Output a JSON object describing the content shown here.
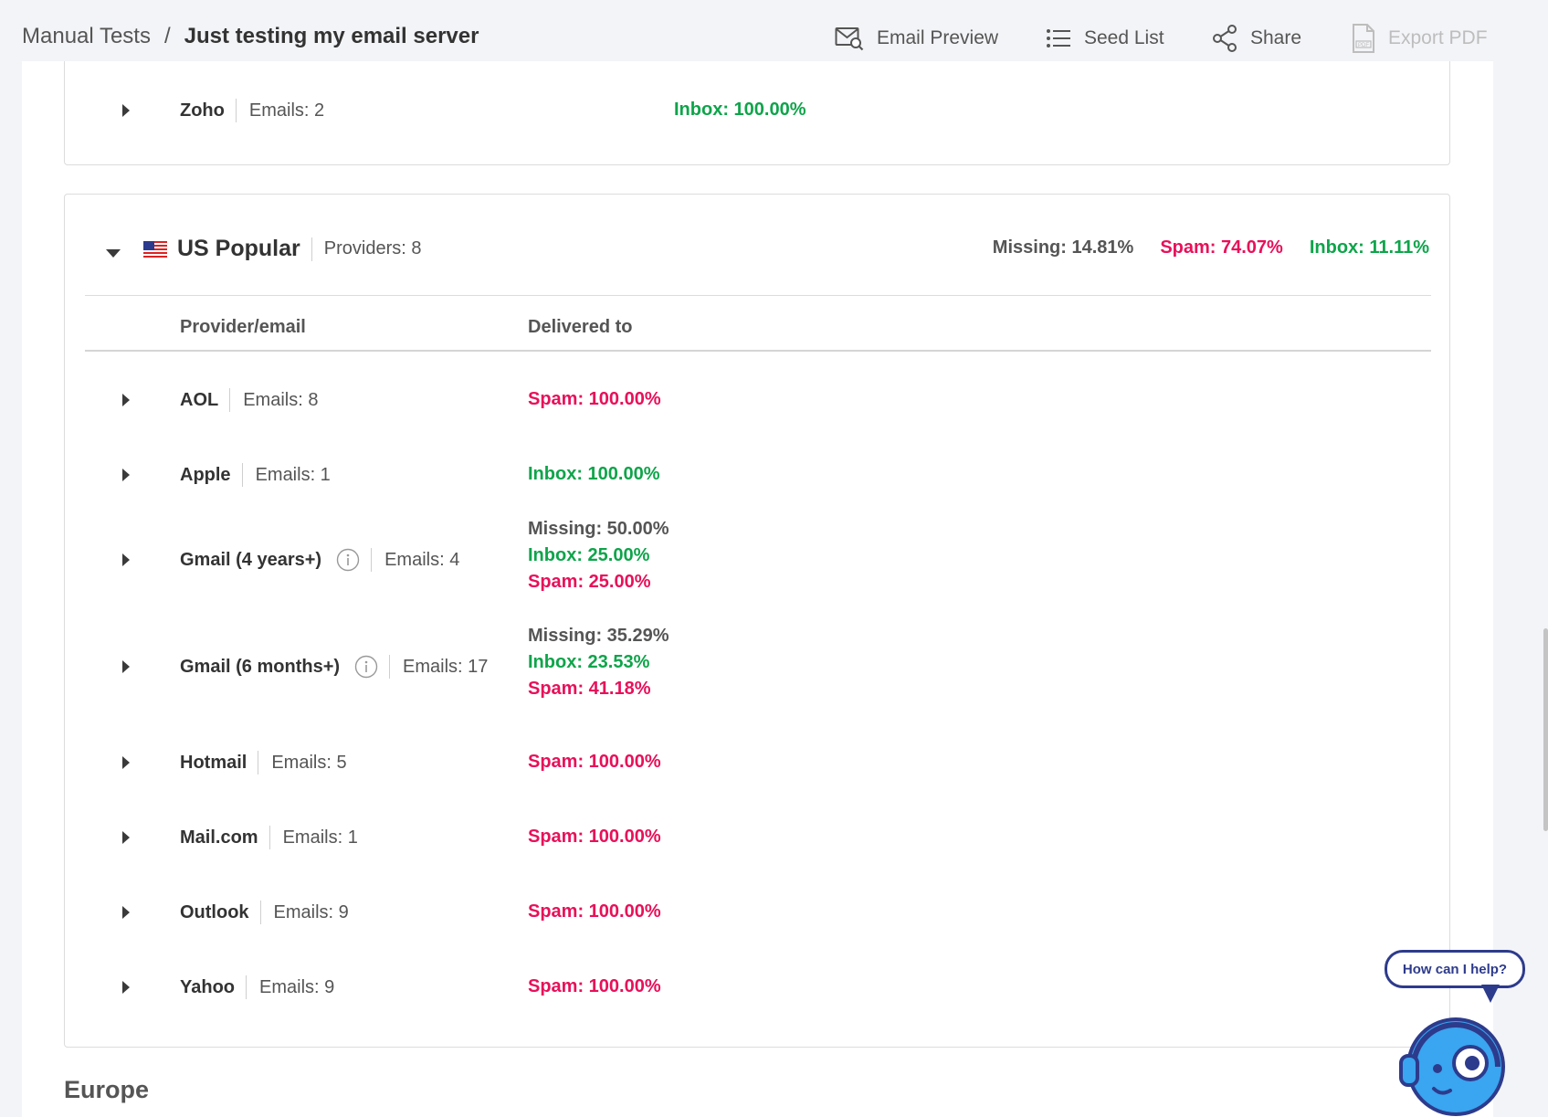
{
  "breadcrumb": {
    "parent": "Manual Tests",
    "separator": "/",
    "current": "Just testing my email server"
  },
  "toolbar": {
    "email_preview": "Email Preview",
    "seed_list": "Seed List",
    "share": "Share",
    "export_pdf": "Export PDF"
  },
  "previous_row": {
    "name": "Zoho",
    "emails": "Emails: 2",
    "delivered": "Inbox: 100.00%"
  },
  "group": {
    "title": "US Popular",
    "providers": "Providers: 8",
    "missing": "Missing: 14.81%",
    "spam": "Spam: 74.07%",
    "inbox": "Inbox: 11.11%"
  },
  "columns": {
    "provider": "Provider/email",
    "delivered": "Delivered to"
  },
  "rows": [
    {
      "name": "AOL",
      "emails": "Emails: 8",
      "spam": "Spam: 100.00%"
    },
    {
      "name": "Apple",
      "emails": "Emails: 1",
      "inbox": "Inbox: 100.00%"
    },
    {
      "name": "Gmail (4 years+)",
      "emails": "Emails: 4",
      "missing": "Missing: 50.00%",
      "inbox": "Inbox: 25.00%",
      "spam": "Spam: 25.00%"
    },
    {
      "name": "Gmail (6 months+)",
      "emails": "Emails: 17",
      "missing": "Missing: 35.29%",
      "inbox": "Inbox: 23.53%",
      "spam": "Spam: 41.18%"
    },
    {
      "name": "Hotmail",
      "emails": "Emails: 5",
      "spam": "Spam: 100.00%"
    },
    {
      "name": "Mail.com",
      "emails": "Emails: 1",
      "spam": "Spam: 100.00%"
    },
    {
      "name": "Outlook",
      "emails": "Emails: 9",
      "spam": "Spam: 100.00%"
    },
    {
      "name": "Yahoo",
      "emails": "Emails: 9",
      "spam": "Spam: 100.00%"
    }
  ],
  "next_section": "Europe",
  "help": {
    "label": "How can I help?"
  },
  "colors": {
    "inbox": "#0ea44a",
    "spam": "#e8105a",
    "missing": "#555555",
    "help_accent": "#2d3b8c",
    "help_avatar": "#3aa5f0"
  }
}
